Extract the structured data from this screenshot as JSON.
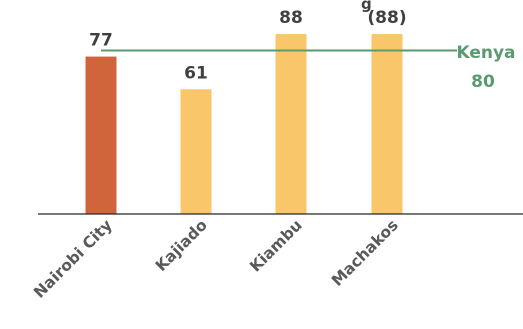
{
  "chart_data": {
    "type": "bar",
    "title_fragment": "g",
    "categories": [
      "Nairobi City",
      "Kajiado",
      "Kiambu",
      "Machakos"
    ],
    "values": [
      77,
      61,
      88,
      88
    ],
    "value_labels": [
      "77",
      "61",
      "88",
      "(88)"
    ],
    "bar_colors": [
      "#d0643a",
      "#f9c76a",
      "#f9c76a",
      "#f9c76a"
    ],
    "reference_line": {
      "name": "Kenya",
      "value": 80,
      "value_label": "80",
      "color": "#5a9a6e"
    },
    "ylim": [
      0,
      90
    ],
    "grid": false,
    "axis_color": "#262626"
  }
}
